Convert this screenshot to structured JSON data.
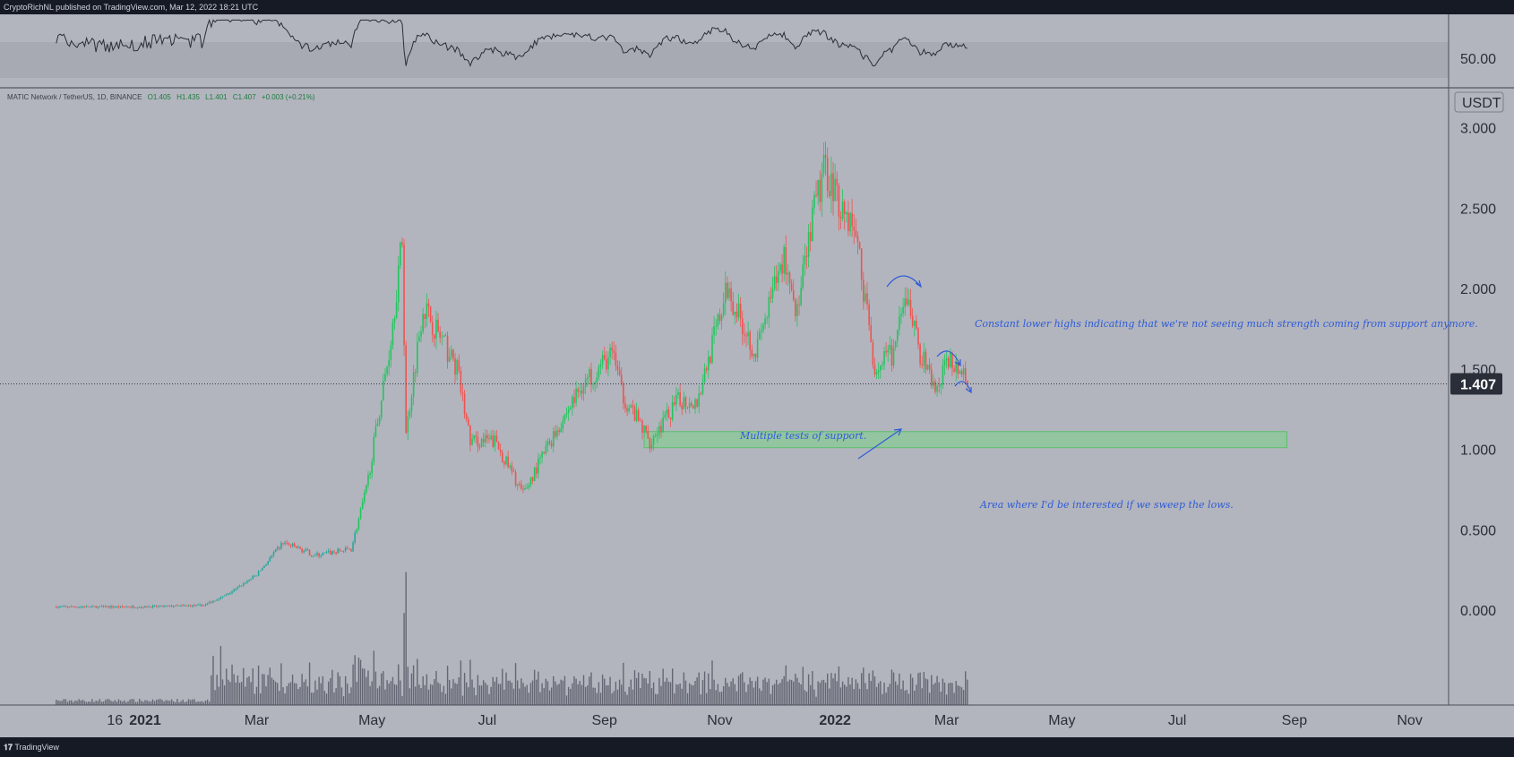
{
  "header": {
    "published_text": "CryptoRichNL published on TradingView.com, Mar 12, 2022 18:21 UTC"
  },
  "footer": {
    "brand": "TradingView",
    "logo_glyph": "𝟏𝟕"
  },
  "chart_data": {
    "type": "candlestick",
    "instrument": {
      "symbol_line": "MATIC Network / TetherUS, 1D, BINANCE",
      "open": "O1.405",
      "high": "H1.435",
      "low": "L1.401",
      "close": "C1.407",
      "change": "+0.003 (+0.21%)"
    },
    "currency_label": "USDT",
    "last_price_label": "1.407",
    "last_price": 1.407,
    "y_ticks": [
      "3.000",
      "2.500",
      "2.000",
      "1.500",
      "1.000",
      "0.500",
      "0.000"
    ],
    "y_tick_values": [
      3.0,
      2.5,
      2.0,
      1.5,
      1.0,
      0.5,
      0.0
    ],
    "ylim": [
      -0.28,
      3.2
    ],
    "x_ticks": [
      "16",
      "2021",
      "Mar",
      "May",
      "Jul",
      "Sep",
      "Nov",
      "2022",
      "Mar",
      "May",
      "Jul",
      "Sep",
      "Nov"
    ],
    "x_tick_days": [
      -16,
      0,
      59,
      120,
      181,
      243,
      304,
      365,
      424,
      485,
      546,
      608,
      669
    ],
    "bold_x_ticks": [
      "2021",
      "2022"
    ],
    "start_date": "2020-11-15",
    "end_date": "2022-03-12",
    "price_path": [
      {
        "date": "2020-11-15",
        "close": 0.02
      },
      {
        "date": "2021-01-01",
        "close": 0.02
      },
      {
        "date": "2021-02-01",
        "close": 0.03
      },
      {
        "date": "2021-02-14",
        "close": 0.1
      },
      {
        "date": "2021-03-01",
        "close": 0.22
      },
      {
        "date": "2021-03-15",
        "close": 0.42
      },
      {
        "date": "2021-04-01",
        "close": 0.34
      },
      {
        "date": "2021-04-20",
        "close": 0.38
      },
      {
        "date": "2021-04-28",
        "close": 0.75
      },
      {
        "date": "2021-05-10",
        "close": 1.6
      },
      {
        "date": "2021-05-17",
        "close": 2.3
      },
      {
        "date": "2021-05-19",
        "close": 1.1
      },
      {
        "date": "2021-05-28",
        "close": 1.9
      },
      {
        "date": "2021-06-15",
        "close": 1.5
      },
      {
        "date": "2021-06-22",
        "close": 1.05
      },
      {
        "date": "2021-07-05",
        "close": 1.05
      },
      {
        "date": "2021-07-20",
        "close": 0.72
      },
      {
        "date": "2021-08-01",
        "close": 1.0
      },
      {
        "date": "2021-08-20",
        "close": 1.4
      },
      {
        "date": "2021-09-06",
        "close": 1.6
      },
      {
        "date": "2021-09-10",
        "close": 1.35
      },
      {
        "date": "2021-09-25",
        "close": 1.05
      },
      {
        "date": "2021-10-10",
        "close": 1.3
      },
      {
        "date": "2021-10-20",
        "close": 1.3
      },
      {
        "date": "2021-11-05",
        "close": 2.0
      },
      {
        "date": "2021-11-20",
        "close": 1.6
      },
      {
        "date": "2021-12-05",
        "close": 2.2
      },
      {
        "date": "2021-12-12",
        "close": 1.85
      },
      {
        "date": "2021-12-22",
        "close": 2.55
      },
      {
        "date": "2021-12-27",
        "close": 2.75
      },
      {
        "date": "2022-01-03",
        "close": 2.55
      },
      {
        "date": "2022-01-12",
        "close": 2.35
      },
      {
        "date": "2022-01-22",
        "close": 1.5
      },
      {
        "date": "2022-02-01",
        "close": 1.6
      },
      {
        "date": "2022-02-08",
        "close": 1.95
      },
      {
        "date": "2022-02-15",
        "close": 1.6
      },
      {
        "date": "2022-02-24",
        "close": 1.35
      },
      {
        "date": "2022-03-01",
        "close": 1.55
      },
      {
        "date": "2022-03-05",
        "close": 1.55
      },
      {
        "date": "2022-03-12",
        "close": 1.407
      }
    ],
    "rsi_panel": {
      "tick_label": "50.00",
      "band_upper": 70,
      "band_lower": 30
    },
    "support_zone": {
      "from_date": "2021-09-22",
      "to_date": "2022-08-28",
      "low": 1.01,
      "high": 1.11,
      "color": "#7fd18e"
    },
    "annotations": [
      "Constant lower highs indicating that we're not seeing much strength coming from support anymore.",
      "Multiple tests of support.",
      "Area where I'd be interested if we sweep the lows."
    ],
    "colors": {
      "up": "#26a69a",
      "up_bright": "#22c55e",
      "down": "#ef5350",
      "background": "#b2b5be",
      "annotation": "#2f5bd6"
    }
  }
}
